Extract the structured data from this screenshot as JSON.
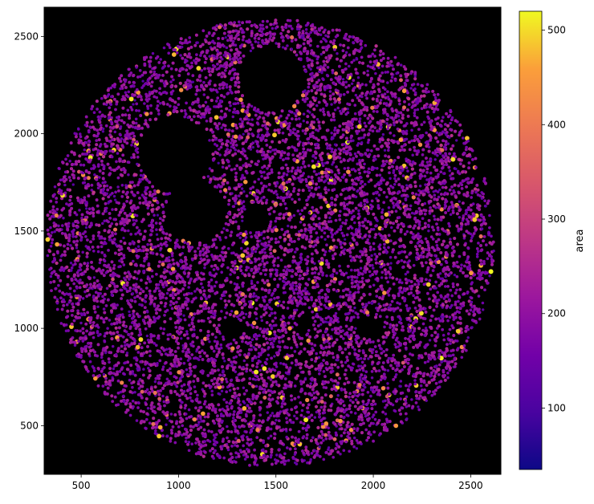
{
  "chart_data": {
    "type": "scatter",
    "title": "",
    "xlabel": "",
    "ylabel": "",
    "xlim": [
      310,
      2655
    ],
    "ylim": [
      250,
      2650
    ],
    "xticks": [
      500,
      1000,
      1500,
      2000,
      2500
    ],
    "yticks": [
      500,
      1000,
      1500,
      2000,
      2500
    ],
    "plot_background": "#000000",
    "colormap": "plasma",
    "colorbar": {
      "label": "area",
      "range": [
        35,
        520
      ],
      "ticks": [
        100,
        200,
        300,
        400,
        500
      ]
    },
    "point_cloud": {
      "shape": "circle",
      "center": [
        1470,
        1440
      ],
      "radius": 1150,
      "point_count_approx": 9000,
      "value_median": 190,
      "value_range": [
        35,
        520
      ],
      "empty_regions": [
        {
          "center": [
            980,
            1900
          ],
          "radius": 190
        },
        {
          "center": [
            1090,
            1600
          ],
          "radius": 160
        },
        {
          "center": [
            1480,
            2280
          ],
          "radius": 170
        },
        {
          "center": [
            1400,
            1570
          ],
          "radius": 70
        },
        {
          "center": [
            1270,
            1000
          ],
          "radius": 60
        },
        {
          "center": [
            1980,
            1000
          ],
          "radius": 55
        },
        {
          "center": [
            1650,
            1030
          ],
          "radius": 45
        }
      ]
    }
  }
}
